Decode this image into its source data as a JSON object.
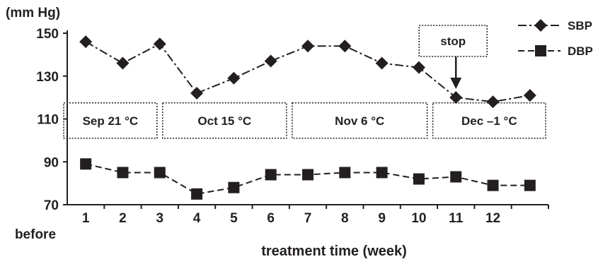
{
  "chart_data": {
    "type": "line",
    "ylabel": "(mm Hg)",
    "xlabel": "treatment time (week)",
    "ylim": [
      70,
      150
    ],
    "yticks": [
      70,
      90,
      110,
      130,
      150
    ],
    "xlim": [
      0,
      13
    ],
    "x_tick_labels": [
      "1",
      "2",
      "3",
      "4",
      "5",
      "6",
      "7",
      "8",
      "9",
      "10",
      "11",
      "12"
    ],
    "x_origin_label": "before",
    "x_points": [
      0.5,
      1.5,
      2.5,
      3.5,
      4.5,
      5.5,
      6.5,
      7.5,
      8.5,
      9.5,
      10.5,
      11.5,
      12.5
    ],
    "series": [
      {
        "name": "SBP",
        "marker": "diamond",
        "line": "dash-dot",
        "values": [
          146,
          136,
          145,
          122,
          129,
          137,
          144,
          144,
          136,
          134,
          120,
          118,
          121
        ]
      },
      {
        "name": "DBP",
        "marker": "square",
        "line": "dashed",
        "values": [
          89,
          85,
          85,
          75,
          78,
          84,
          84,
          85,
          85,
          82,
          83,
          79,
          79
        ]
      }
    ],
    "periods": [
      {
        "label": "Sep 21 °C",
        "x_start": 0,
        "x_end": 2.5
      },
      {
        "label": "Oct 15 °C",
        "x_start": 2.5,
        "x_end": 6
      },
      {
        "label": "Nov 6 °C",
        "x_start": 6,
        "x_end": 9.8
      },
      {
        "label": "Dec –1 °C",
        "x_start": 9.8,
        "x_end": 13
      }
    ],
    "annotation": {
      "text": "stop",
      "x": 10.5
    },
    "legend_position": "top-right",
    "grid": false,
    "color": "#231f20"
  }
}
